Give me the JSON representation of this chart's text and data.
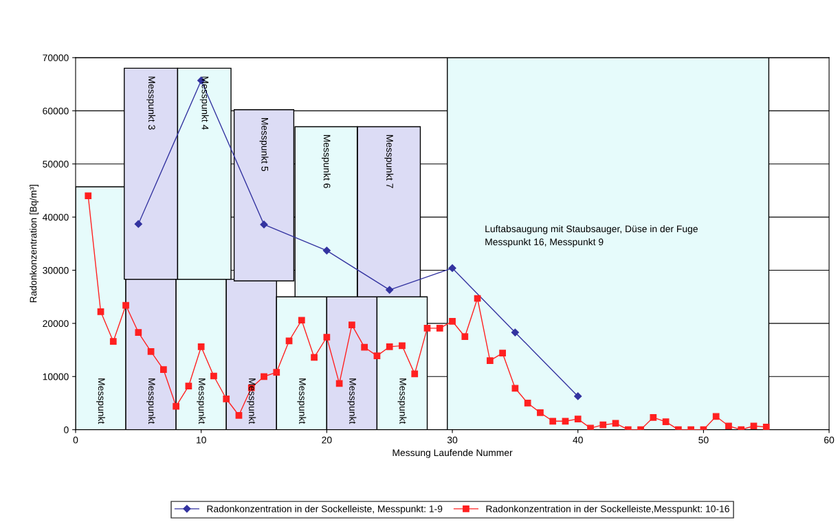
{
  "chart_data": {
    "type": "line",
    "xlabel": "Messung Laufende Nummer",
    "ylabel": "Radonkonzentration [Bq/m³]",
    "xlim": [
      0,
      60
    ],
    "xticks": [
      0,
      10,
      20,
      30,
      40,
      50,
      60
    ],
    "ylim": [
      0,
      70000
    ],
    "yticks": [
      0,
      10000,
      20000,
      30000,
      40000,
      50000,
      60000,
      70000
    ],
    "grid": "y",
    "legend": "bottom",
    "annotations": [
      "Luftabsaugung mit Staubsauger, Düse in der Fuge\nMesspunkt 16, Messpunkt 9"
    ],
    "series": [
      {
        "type": "area",
        "x": [
          29.6,
          55.2
        ],
        "values": [
          70000,
          70000
        ],
        "color": "#e6fbfb"
      },
      {
        "type": "bar",
        "x": [
          2,
          6,
          10,
          14,
          18,
          22,
          26
        ],
        "values": [
          45700,
          28300,
          28300,
          28300,
          25000,
          25000,
          25000
        ],
        "colors": [
          "#e6fbfb",
          "#dcdcf5",
          "#e6fbfb",
          "#dcdcf5",
          "#e6fbfb",
          "#dcdcf5",
          "#e6fbfb"
        ],
        "value_labels": [
          "Messpunkt",
          "Messpunkt",
          "Messpunkt",
          "Messpunkt",
          "Messpunkt",
          "Messpunkt",
          "Messpunkt"
        ]
      },
      {
        "type": "bar",
        "x": [
          6,
          10.25,
          15,
          19.95,
          24.95
        ],
        "base": [
          28300,
          28300,
          28000,
          25000,
          25000
        ],
        "values": [
          39700,
          39700,
          32200,
          32000,
          32000
        ],
        "colors": [
          "#dcdcf5",
          "#e6fbfb",
          "#dcdcf5",
          "#e6fbfb",
          "#dcdcf5"
        ],
        "value_labels": [
          "Messpunkt 3",
          "Messpunkt 4",
          "Messpunkt 5",
          "Messpunkt 6",
          "Messpunkt 7"
        ]
      },
      {
        "name": "Radonkonzentration in der Sockelleiste, Messpunkt: 1-9",
        "color": "#3333a0",
        "marker": "diamond",
        "x": [
          5,
          10,
          15,
          20,
          25,
          30,
          35,
          40
        ],
        "values": [
          38700,
          65700,
          38600,
          33700,
          26300,
          30400,
          18300,
          6300
        ]
      },
      {
        "name": "Radonkonzentration in der Sockelleiste,Messpunkt: 10-16",
        "color": "#ff2020",
        "marker": "square",
        "x": [
          1,
          2,
          3,
          4,
          5,
          6,
          7,
          8,
          9,
          10,
          11,
          12,
          13,
          14,
          15,
          16,
          17,
          18,
          19,
          20,
          21,
          22,
          23,
          24,
          25,
          26,
          27,
          28,
          29,
          30,
          31,
          32,
          33,
          34,
          35,
          36,
          37,
          38,
          39,
          40,
          41,
          42,
          43,
          44,
          45,
          46,
          47,
          48,
          49,
          50,
          51,
          52,
          53,
          54,
          55
        ],
        "values": [
          44000,
          22200,
          16600,
          23400,
          18300,
          14700,
          11300,
          4400,
          8200,
          15600,
          10100,
          5800,
          2700,
          7900,
          10000,
          10800,
          16700,
          20600,
          13600,
          17400,
          8700,
          19700,
          15500,
          13900,
          15600,
          15800,
          10500,
          19100,
          19100,
          20400,
          17500,
          24700,
          13000,
          14400,
          7800,
          5000,
          3200,
          1600,
          1600,
          2000,
          300,
          900,
          1200,
          0,
          0,
          2300,
          1500,
          0,
          0,
          0,
          2500,
          700,
          0,
          700,
          500
        ]
      }
    ]
  }
}
